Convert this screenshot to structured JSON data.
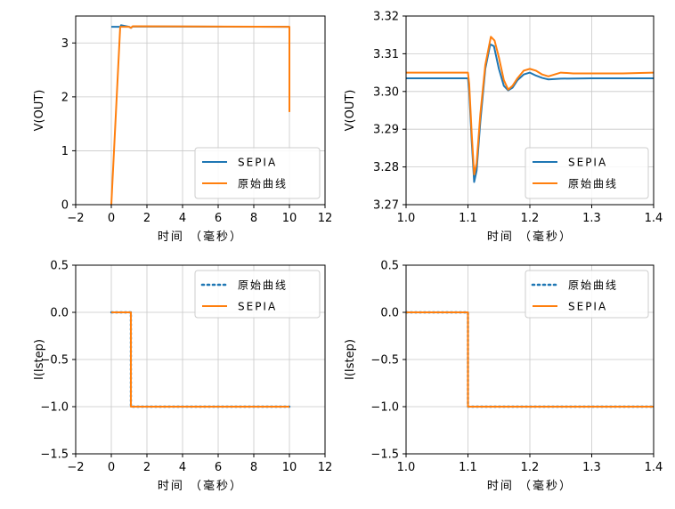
{
  "colors": {
    "blue": "#1f77b4",
    "orange": "#ff7f0e",
    "grid": "#c8c8c8"
  },
  "chart_data": [
    {
      "type": "line",
      "xlabel": "时间 （毫秒）",
      "ylabel": "V(OUT)",
      "xlim": [
        -2,
        12
      ],
      "ylim": [
        0,
        3.5
      ],
      "xticks": [
        -2,
        0,
        2,
        4,
        6,
        8,
        10,
        12
      ],
      "yticks": [
        0,
        1,
        2,
        3
      ],
      "grid": true,
      "legend": "lower-right",
      "series": [
        {
          "name": "SEPIA",
          "color": "#1f77b4",
          "style": "solid",
          "points": [
            [
              0,
              3.3
            ],
            [
              0.5,
              3.3
            ],
            [
              0.55,
              3.33
            ],
            [
              1.0,
              3.3
            ],
            [
              1.1,
              3.28
            ],
            [
              1.2,
              3.305
            ],
            [
              10,
              3.3
            ]
          ]
        },
        {
          "name": "原始曲线",
          "color": "#ff7f0e",
          "style": "solid",
          "points": [
            [
              0,
              0
            ],
            [
              0.5,
              3.3
            ],
            [
              1.0,
              3.3
            ],
            [
              1.1,
              3.28
            ],
            [
              1.2,
              3.31
            ],
            [
              10,
              3.3
            ],
            [
              10,
              1.72
            ]
          ]
        }
      ]
    },
    {
      "type": "line",
      "xlabel": "时间 （毫秒）",
      "ylabel": "V(OUT)",
      "xlim": [
        1,
        1.4
      ],
      "ylim": [
        3.27,
        3.32
      ],
      "xticks": [
        1,
        1.1,
        1.2,
        1.3,
        1.4
      ],
      "yticks": [
        3.27,
        3.28,
        3.29,
        3.3,
        3.31,
        3.32
      ],
      "grid": true,
      "legend": "lower-right",
      "series": [
        {
          "name": "SEPIA",
          "color": "#1f77b4",
          "style": "solid",
          "points": [
            [
              1.0,
              3.3035
            ],
            [
              1.1,
              3.3035
            ],
            [
              1.102,
              3.3
            ],
            [
              1.106,
              3.287
            ],
            [
              1.11,
              3.276
            ],
            [
              1.114,
              3.279
            ],
            [
              1.12,
              3.292
            ],
            [
              1.128,
              3.306
            ],
            [
              1.136,
              3.3125
            ],
            [
              1.142,
              3.312
            ],
            [
              1.15,
              3.306
            ],
            [
              1.158,
              3.3015
            ],
            [
              1.165,
              3.3003
            ],
            [
              1.172,
              3.301
            ],
            [
              1.18,
              3.303
            ],
            [
              1.19,
              3.3045
            ],
            [
              1.2,
              3.305
            ],
            [
              1.21,
              3.3042
            ],
            [
              1.22,
              3.3036
            ],
            [
              1.23,
              3.3032
            ],
            [
              1.25,
              3.3034
            ],
            [
              1.3,
              3.3035
            ],
            [
              1.4,
              3.3035
            ]
          ]
        },
        {
          "name": "原始曲线",
          "color": "#ff7f0e",
          "style": "solid",
          "points": [
            [
              1.0,
              3.305
            ],
            [
              1.1,
              3.305
            ],
            [
              1.102,
              3.302
            ],
            [
              1.106,
              3.289
            ],
            [
              1.11,
              3.278
            ],
            [
              1.114,
              3.281
            ],
            [
              1.12,
              3.294
            ],
            [
              1.128,
              3.307
            ],
            [
              1.137,
              3.3145
            ],
            [
              1.143,
              3.3135
            ],
            [
              1.15,
              3.309
            ],
            [
              1.158,
              3.303
            ],
            [
              1.165,
              3.3005
            ],
            [
              1.172,
              3.3015
            ],
            [
              1.18,
              3.3035
            ],
            [
              1.19,
              3.3055
            ],
            [
              1.2,
              3.306
            ],
            [
              1.21,
              3.3055
            ],
            [
              1.22,
              3.3045
            ],
            [
              1.23,
              3.304
            ],
            [
              1.24,
              3.3045
            ],
            [
              1.25,
              3.305
            ],
            [
              1.27,
              3.3048
            ],
            [
              1.3,
              3.3048
            ],
            [
              1.35,
              3.3048
            ],
            [
              1.4,
              3.305
            ]
          ]
        }
      ]
    },
    {
      "type": "line",
      "xlabel": "时间 （毫秒）",
      "ylabel": "I(Istep)",
      "xlim": [
        -2,
        12
      ],
      "ylim": [
        -1.5,
        0.5
      ],
      "xticks": [
        -2,
        0,
        2,
        4,
        6,
        8,
        10,
        12
      ],
      "yticks": [
        -1.5,
        -1.0,
        -0.5,
        0.0,
        0.5
      ],
      "grid": true,
      "legend": "upper-right",
      "series": [
        {
          "name": "原始曲线",
          "color": "#1f77b4",
          "style": "dotted",
          "points": [
            [
              0,
              0
            ],
            [
              1.1,
              0
            ],
            [
              1.1,
              -1
            ],
            [
              10,
              -1
            ]
          ]
        },
        {
          "name": "SEPIA",
          "color": "#ff7f0e",
          "style": "solid",
          "points": [
            [
              0,
              0
            ],
            [
              1.1,
              0
            ],
            [
              1.1,
              -1
            ],
            [
              10,
              -1
            ]
          ]
        }
      ]
    },
    {
      "type": "line",
      "xlabel": "时间 （毫秒）",
      "ylabel": "I(Istep)",
      "xlim": [
        1,
        1.4
      ],
      "ylim": [
        -1.5,
        0.5
      ],
      "xticks": [
        1,
        1.1,
        1.2,
        1.3,
        1.4
      ],
      "yticks": [
        -1.5,
        -1.0,
        -0.5,
        0.0,
        0.5
      ],
      "grid": true,
      "legend": "upper-right",
      "series": [
        {
          "name": "原始曲线",
          "color": "#1f77b4",
          "style": "dotted",
          "points": [
            [
              1.0,
              0
            ],
            [
              1.1,
              0
            ],
            [
              1.1,
              -1
            ],
            [
              1.4,
              -1
            ]
          ]
        },
        {
          "name": "SEPIA",
          "color": "#ff7f0e",
          "style": "solid",
          "points": [
            [
              1.0,
              0
            ],
            [
              1.1,
              0
            ],
            [
              1.1,
              -1
            ],
            [
              1.4,
              -1
            ]
          ]
        }
      ]
    }
  ]
}
